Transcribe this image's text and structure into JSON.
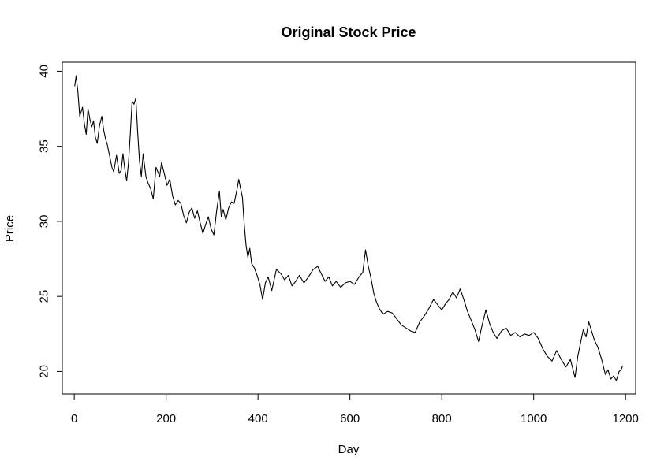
{
  "chart_data": {
    "type": "line",
    "title": "Original Stock Price",
    "xlabel": "Day",
    "ylabel": "Price",
    "xlim": [
      -26,
      1222
    ],
    "ylim": [
      18.5,
      40.6
    ],
    "x_ticks": [
      0,
      200,
      400,
      600,
      800,
      1000,
      1200
    ],
    "x_tick_labels": [
      "0",
      "200",
      "400",
      "600",
      "800",
      "1000",
      "1200"
    ],
    "y_ticks": [
      20,
      25,
      30,
      35,
      40
    ],
    "y_tick_labels": [
      "20",
      "25",
      "30",
      "35",
      "40"
    ],
    "grid": false,
    "colors": {
      "line": "#000000",
      "frame": "#000000",
      "background": "#ffffff"
    },
    "series": [
      {
        "x": [
          1,
          4,
          8,
          12,
          18,
          22,
          26,
          30,
          34,
          38,
          42,
          46,
          50,
          55,
          60,
          64,
          68,
          72,
          78,
          82,
          86,
          92,
          98,
          102,
          106,
          110,
          114,
          118,
          122,
          126,
          130,
          134,
          138,
          142,
          146,
          150,
          156,
          160,
          166,
          172,
          178,
          186,
          190,
          196,
          202,
          208,
          214,
          220,
          226,
          232,
          238,
          244,
          250,
          256,
          262,
          268,
          274,
          280,
          286,
          292,
          298,
          304,
          310,
          316,
          320,
          324,
          330,
          336,
          342,
          348,
          354,
          358,
          362,
          366,
          370,
          374,
          378,
          382,
          386,
          392,
          398,
          404,
          410,
          416,
          422,
          430,
          440,
          450,
          458,
          466,
          474,
          482,
          490,
          500,
          510,
          520,
          530,
          538,
          546,
          554,
          562,
          570,
          580,
          590,
          600,
          610,
          620,
          628,
          634,
          640,
          646,
          652,
          658,
          664,
          672,
          682,
          692,
          702,
          712,
          722,
          732,
          742,
          752,
          762,
          772,
          782,
          792,
          800,
          808,
          816,
          824,
          832,
          840,
          848,
          856,
          864,
          872,
          880,
          888,
          896,
          904,
          912,
          920,
          930,
          940,
          950,
          960,
          970,
          980,
          990,
          1000,
          1010,
          1020,
          1030,
          1040,
          1050,
          1060,
          1070,
          1080,
          1090,
          1096,
          1102,
          1108,
          1114,
          1120,
          1126,
          1132,
          1140,
          1148,
          1156,
          1162,
          1168,
          1174,
          1180,
          1186,
          1190,
          1194
        ],
        "y": [
          39.0,
          39.7,
          38.6,
          37.0,
          37.6,
          36.5,
          35.8,
          37.5,
          36.8,
          36.3,
          36.7,
          35.6,
          35.2,
          36.4,
          37.0,
          36.1,
          35.5,
          35.1,
          34.2,
          33.6,
          33.3,
          34.4,
          33.2,
          33.4,
          34.5,
          33.5,
          32.7,
          33.9,
          35.8,
          38.0,
          37.8,
          38.2,
          36.0,
          34.0,
          33.0,
          34.5,
          33.0,
          32.6,
          32.2,
          31.5,
          33.6,
          33.0,
          33.9,
          33.2,
          32.4,
          32.8,
          31.7,
          31.1,
          31.4,
          31.2,
          30.4,
          29.9,
          30.6,
          30.9,
          30.2,
          30.7,
          29.9,
          29.2,
          29.8,
          30.3,
          29.5,
          29.1,
          30.7,
          32.0,
          30.3,
          30.8,
          30.1,
          30.9,
          31.3,
          31.2,
          32.1,
          32.8,
          32.2,
          31.6,
          29.8,
          28.4,
          27.6,
          28.2,
          27.2,
          26.9,
          26.4,
          25.8,
          24.8,
          25.9,
          26.3,
          25.4,
          26.8,
          26.5,
          26.1,
          26.4,
          25.7,
          26.0,
          26.4,
          25.9,
          26.3,
          26.8,
          27.0,
          26.5,
          26.0,
          26.3,
          25.7,
          26.0,
          25.6,
          25.9,
          26.0,
          25.8,
          26.3,
          26.6,
          28.1,
          27.0,
          26.2,
          25.2,
          24.6,
          24.2,
          23.8,
          24.0,
          23.9,
          23.5,
          23.1,
          22.9,
          22.7,
          22.6,
          23.3,
          23.7,
          24.2,
          24.8,
          24.4,
          24.1,
          24.5,
          24.8,
          25.3,
          24.9,
          25.5,
          24.8,
          24.0,
          23.4,
          22.8,
          22.0,
          23.1,
          24.1,
          23.2,
          22.6,
          22.2,
          22.7,
          22.9,
          22.4,
          22.6,
          22.3,
          22.5,
          22.4,
          22.6,
          22.2,
          21.5,
          21.0,
          20.7,
          21.4,
          20.8,
          20.3,
          20.8,
          19.6,
          21.0,
          21.9,
          22.8,
          22.3,
          23.3,
          22.7,
          22.1,
          21.6,
          20.8,
          19.8,
          20.1,
          19.5,
          19.7,
          19.4,
          20.0,
          20.1,
          20.4
        ]
      }
    ]
  }
}
